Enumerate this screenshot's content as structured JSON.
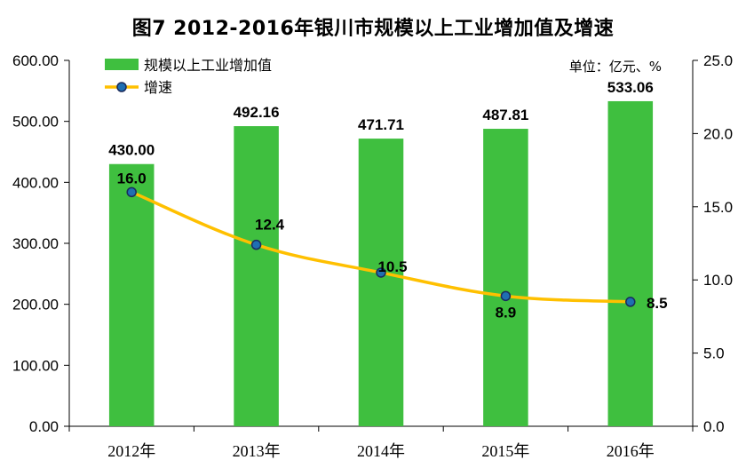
{
  "title": "图7   2012-2016年银川市规模以上工业增加值及增速",
  "unit_label": "单位：亿元、%",
  "colors": {
    "bar": "#3fbf3f",
    "line": "#ffc000",
    "marker_fill": "#1f6fb2",
    "marker_edge": "#1a2b5c",
    "axis": "#000000"
  },
  "chart_data": {
    "type": "bar",
    "categories": [
      "2012年",
      "2013年",
      "2014年",
      "2015年",
      "2016年"
    ],
    "series": [
      {
        "name": "规模以上工业增加值",
        "type": "bar",
        "axis": "left",
        "values": [
          430.0,
          492.16,
          471.71,
          487.81,
          533.06
        ],
        "labels": [
          "430.00",
          "492.16",
          "471.71",
          "487.81",
          "533.06"
        ]
      },
      {
        "name": "增速",
        "type": "line",
        "axis": "right",
        "values": [
          16.0,
          12.4,
          10.5,
          8.9,
          8.5
        ],
        "labels": [
          "16.0",
          "12.4",
          "10.5",
          "8.9",
          "8.5"
        ]
      }
    ],
    "y_left": {
      "lim": [
        0,
        600
      ],
      "ticks": [
        "0.00",
        "100.00",
        "200.00",
        "300.00",
        "400.00",
        "500.00",
        "600.00"
      ]
    },
    "y_right": {
      "lim": [
        0,
        25
      ],
      "ticks": [
        "0.0",
        "5.0",
        "10.0",
        "15.0",
        "20.0",
        "25.0"
      ]
    },
    "grid": false,
    "legend_position": "top-left"
  }
}
